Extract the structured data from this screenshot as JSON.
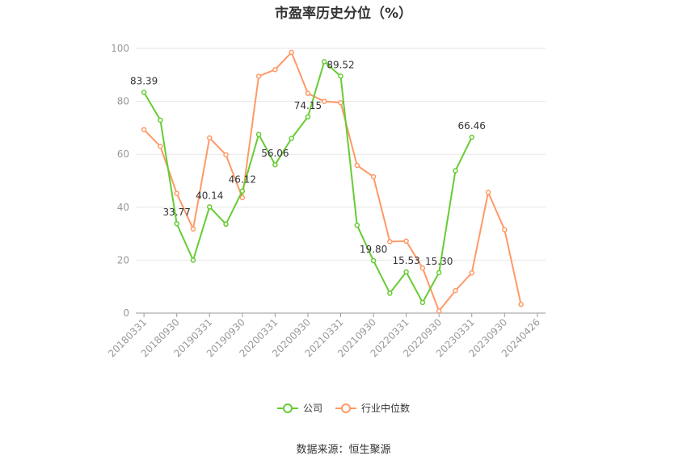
{
  "chart_data": {
    "type": "line",
    "title": "市盈率历史分位（%）",
    "xlabel": "",
    "ylabel": "",
    "ylim": [
      0,
      100
    ],
    "yticks": [
      0,
      20,
      40,
      60,
      80,
      100
    ],
    "grid": true,
    "legend_position": "bottom",
    "x": [
      "20180331",
      "20180630",
      "20180930",
      "20181231",
      "20190331",
      "20190630",
      "20190930",
      "20191231",
      "20200331",
      "20200630",
      "20200930",
      "20201231",
      "20210331",
      "20210630",
      "20210930",
      "20211231",
      "20220331",
      "20220630",
      "20220930",
      "20221231",
      "20230331",
      "20230630",
      "20230930",
      "20231231",
      "20240426"
    ],
    "xtick_labels": [
      "20180331",
      "20180930",
      "20190331",
      "20190930",
      "20200331",
      "20200930",
      "20210331",
      "20210930",
      "20220331",
      "20220930",
      "20230331",
      "20230930",
      "20240426"
    ],
    "series": [
      {
        "name": "公司",
        "color": "#66cc33",
        "values": [
          83.39,
          72.9,
          33.77,
          20.0,
          40.14,
          33.6,
          46.12,
          67.5,
          56.06,
          66.0,
          74.15,
          95.0,
          89.52,
          33.2,
          19.8,
          7.5,
          15.53,
          4.0,
          15.3,
          53.8,
          66.46,
          null,
          null,
          null,
          null
        ],
        "labels": [
          {
            "x": "20180331",
            "text": "83.39"
          },
          {
            "x": "20180930",
            "text": "33.77"
          },
          {
            "x": "20190331",
            "text": "40.14"
          },
          {
            "x": "20190930",
            "text": "46.12"
          },
          {
            "x": "20200331",
            "text": "56.06"
          },
          {
            "x": "20200930",
            "text": "74.15"
          },
          {
            "x": "20210331",
            "text": "89.52"
          },
          {
            "x": "20210930",
            "text": "19.80"
          },
          {
            "x": "20220331",
            "text": "15.53"
          },
          {
            "x": "20220930",
            "text": "15.30"
          },
          {
            "x": "20230331",
            "text": "66.46"
          }
        ]
      },
      {
        "name": "行业中位数",
        "color": "#ff9966",
        "values": [
          69.3,
          63.0,
          45.2,
          31.8,
          66.2,
          59.8,
          43.6,
          89.5,
          92.0,
          98.5,
          83.0,
          80.0,
          79.5,
          55.8,
          51.5,
          27.0,
          27.2,
          17.0,
          0.8,
          8.5,
          15.2,
          45.6,
          31.5,
          3.3,
          null
        ]
      }
    ]
  },
  "footer": {
    "source_note": "数据来源：恒生聚源"
  }
}
